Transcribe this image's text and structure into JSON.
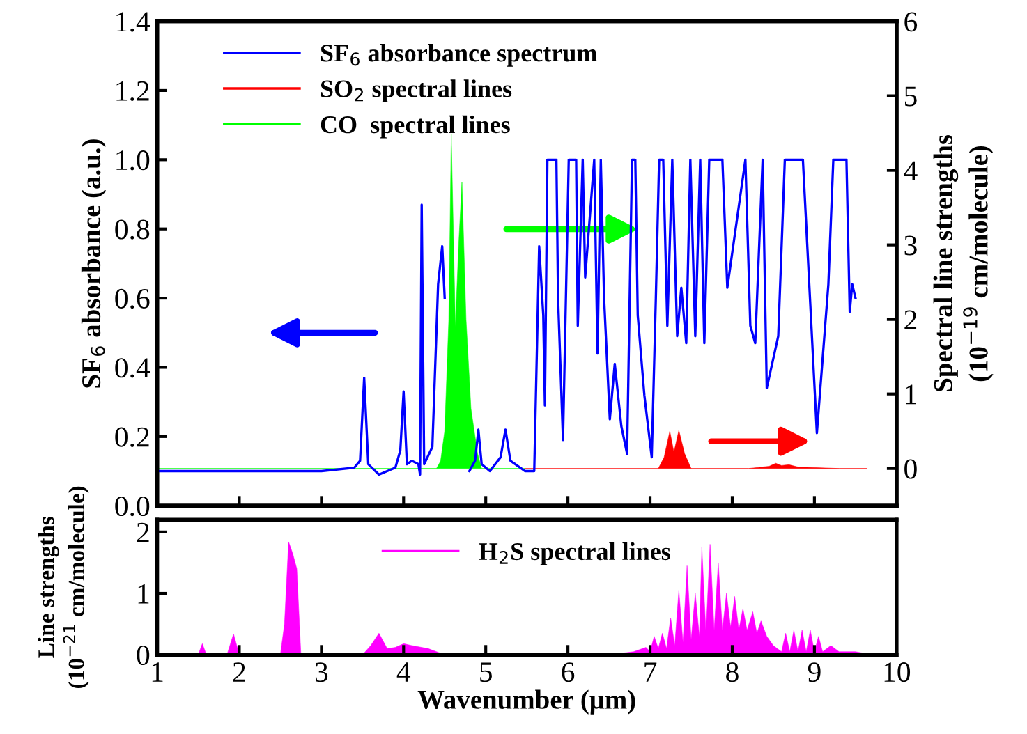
{
  "chart_data": [
    {
      "type": "line",
      "ylabel": "SF$_{6}$ absorbance (a.u.)",
      "y2label": "Spectral line strengths\n(10$^{−19}$ cm/molecule)",
      "xlim": [
        1,
        10
      ],
      "xticks": [
        1,
        2,
        3,
        4,
        5,
        6,
        7,
        8,
        9,
        10
      ],
      "ylim": [
        0,
        1.4
      ],
      "yticks": [
        {
          "value": 0,
          "label": "0.0"
        },
        {
          "value": 0.2,
          "label": "0.2"
        },
        {
          "value": 0.4,
          "label": "0.4"
        },
        {
          "value": 0.6,
          "label": "0.6"
        },
        {
          "value": 0.8,
          "label": "0.8"
        },
        {
          "value": 1.0,
          "label": "1.0"
        },
        {
          "value": 1.2,
          "label": "1.2"
        },
        {
          "value": 1.4,
          "label": "1.4"
        }
      ],
      "y2lim": [
        -0.5,
        6
      ],
      "y2ticks": [
        0,
        1,
        2,
        3,
        4,
        5,
        6
      ],
      "tick_labels": "y",
      "legend": "top left",
      "grid": false,
      "series": [
        {
          "name": "SF$_{6}$ absorbance spectrum",
          "color": "#0000ff",
          "x": [
            1.0,
            2.0,
            3.0,
            3.4,
            3.47,
            3.52,
            3.57,
            3.7,
            3.9,
            3.96,
            4.0,
            4.04,
            4.1,
            4.18,
            4.2,
            4.22,
            4.25,
            4.35,
            4.42,
            4.47,
            4.5,
            4.55,
            4.8,
            4.87,
            4.91,
            4.95,
            5.05,
            5.18,
            5.24,
            5.3,
            5.36,
            5.48,
            5.59,
            5.65,
            5.7,
            5.72,
            5.75,
            5.86,
            5.88,
            5.94,
            6.01,
            6.1,
            6.12,
            6.18,
            6.21,
            6.32,
            6.36,
            6.4,
            6.44,
            6.51,
            6.57,
            6.65,
            6.72,
            6.78,
            6.82,
            6.85,
            6.93,
            7.02,
            7.07,
            7.11,
            7.16,
            7.21,
            7.27,
            7.33,
            7.38,
            7.44,
            7.49,
            7.55,
            7.61,
            7.66,
            7.72,
            7.88,
            7.94,
            8.16,
            8.22,
            8.28,
            8.37,
            8.42,
            8.56,
            8.64,
            8.86,
            9.03,
            9.17,
            9.23,
            9.39,
            9.43,
            9.46,
            9.5
          ],
          "values": [
            0.1,
            0.1,
            0.1,
            0.11,
            0.13,
            0.37,
            0.12,
            0.09,
            0.11,
            0.16,
            0.33,
            0.12,
            0.13,
            0.12,
            0.09,
            0.87,
            0.12,
            0.17,
            0.64,
            0.75,
            0.6,
            null,
            0.1,
            0.13,
            0.22,
            0.12,
            0.1,
            0.14,
            0.22,
            0.13,
            0.12,
            0.1,
            0.1,
            0.75,
            0.55,
            0.29,
            1.0,
            1.0,
            0.6,
            0.19,
            1.0,
            1.0,
            0.52,
            1.0,
            0.66,
            1.0,
            0.44,
            1.0,
            0.6,
            0.25,
            0.41,
            0.23,
            0.15,
            1.0,
            1.0,
            0.55,
            0.32,
            0.14,
            0.6,
            1.0,
            1.0,
            0.52,
            1.0,
            0.49,
            0.63,
            0.47,
            1.0,
            0.49,
            1.0,
            0.47,
            1.0,
            1.0,
            0.63,
            1.0,
            0.52,
            0.47,
            1.0,
            0.34,
            0.49,
            1.0,
            1.0,
            0.21,
            0.64,
            1.0,
            1.0,
            0.56,
            0.64,
            0.6
          ]
        },
        {
          "name": "SO$_{2}$ spectral lines",
          "type": "area",
          "axis": "y2",
          "color": "#ff0000",
          "x": [
            5.48,
            7.1,
            7.17,
            7.24,
            7.29,
            7.35,
            7.42,
            7.5,
            8.2,
            8.45,
            8.53,
            8.6,
            8.69,
            8.8,
            9.3,
            9.64
          ],
          "values": [
            0,
            0,
            0.15,
            0.5,
            0.22,
            0.51,
            0.2,
            0,
            0,
            0.03,
            0.07,
            0.04,
            0.05,
            0.02,
            0,
            0
          ]
        },
        {
          "name": "CO  spectral lines",
          "type": "area",
          "axis": "y2",
          "color": "#00ff00",
          "x": [
            1.0,
            4.4,
            4.45,
            4.5,
            4.55,
            4.58,
            4.63,
            4.67,
            4.71,
            4.76,
            4.82,
            4.9,
            4.95,
            5.48
          ],
          "values": [
            0,
            0,
            0.1,
            0.5,
            2.0,
            4.49,
            1.9,
            3.0,
            3.84,
            2.0,
            0.8,
            0.2,
            0,
            0
          ]
        }
      ]
    },
    {
      "type": "area",
      "ylabel": "Line strengths\n(10$^{−21}$ cm/molecule)",
      "xlabel": "Wavenumber (μm)",
      "xlim": [
        1,
        10
      ],
      "xticks": [
        1,
        2,
        3,
        4,
        5,
        6,
        7,
        8,
        9,
        10
      ],
      "ylim": [
        0,
        2.2
      ],
      "yticks": [
        0,
        1,
        2
      ],
      "legend": "top",
      "grid": false,
      "series": [
        {
          "name": "H$_{2}$S spectral lines",
          "color": "#ff00ff",
          "x": [
            1.0,
            1.5,
            1.55,
            1.6,
            1.85,
            1.93,
            2.0,
            2.5,
            2.55,
            2.6,
            2.65,
            2.7,
            2.75,
            3.5,
            3.6,
            3.7,
            3.8,
            3.9,
            4.0,
            4.1,
            4.3,
            4.5,
            6.5,
            6.8,
            6.95,
            7.0,
            7.05,
            7.1,
            7.15,
            7.2,
            7.25,
            7.3,
            7.35,
            7.4,
            7.45,
            7.5,
            7.55,
            7.6,
            7.63,
            7.68,
            7.73,
            7.78,
            7.83,
            7.88,
            7.93,
            7.98,
            8.03,
            8.08,
            8.13,
            8.18,
            8.25,
            8.3,
            8.35,
            8.42,
            8.5,
            8.6,
            8.65,
            8.7,
            8.75,
            8.8,
            8.85,
            8.9,
            8.95,
            9.0,
            9.05,
            9.1,
            9.2,
            9.3,
            9.5,
            9.7,
            10.0
          ],
          "values": [
            0,
            0,
            0.18,
            0,
            0,
            0.34,
            0,
            0,
            0.5,
            1.84,
            1.65,
            1.4,
            0,
            0,
            0.15,
            0.35,
            0.1,
            0.12,
            0.18,
            0.15,
            0.1,
            0,
            0,
            0.05,
            0.12,
            0.05,
            0.3,
            0.1,
            0.35,
            0.1,
            0.6,
            0.15,
            1.05,
            0.2,
            1.45,
            0.25,
            1.0,
            0.3,
            1.75,
            0.35,
            1.8,
            0.4,
            1.5,
            0.4,
            1.0,
            0.45,
            0.95,
            0.4,
            0.75,
            0.4,
            0.7,
            0.35,
            0.55,
            0.3,
            0.15,
            0.05,
            0.35,
            0.05,
            0.4,
            0.05,
            0.4,
            0.05,
            0.4,
            0.05,
            0.3,
            0.05,
            0.15,
            0.05,
            0.05,
            0,
            0
          ]
        }
      ]
    }
  ]
}
